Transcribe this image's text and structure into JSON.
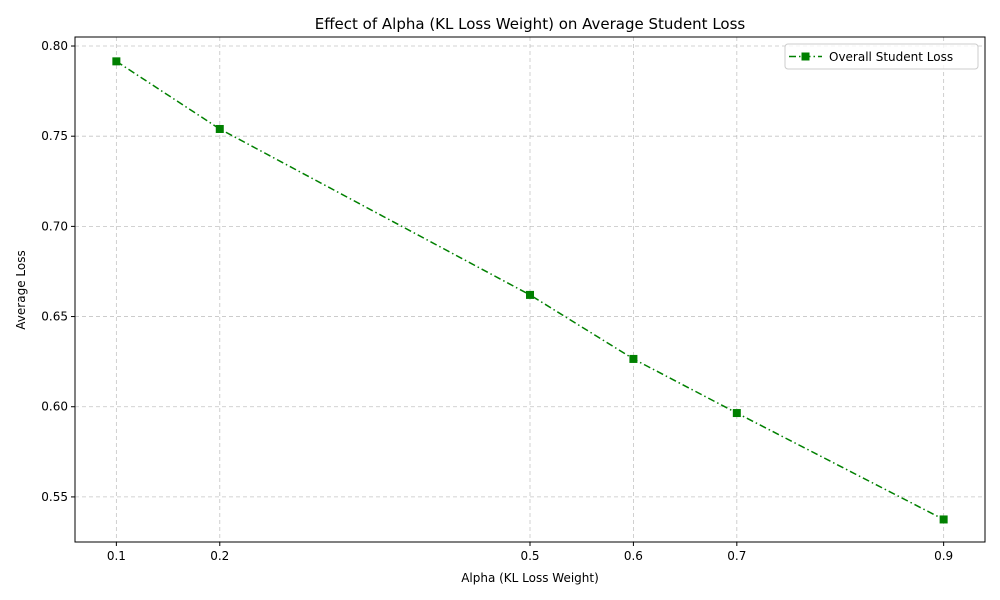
{
  "chart_data": {
    "type": "line",
    "title": "Effect of Alpha (KL Loss Weight) on Average Student Loss",
    "xlabel": "Alpha (KL Loss Weight)",
    "ylabel": "Average Loss",
    "x": [
      0.1,
      0.2,
      0.5,
      0.6,
      0.7,
      0.9
    ],
    "xticks": [
      "0.1",
      "0.2",
      "0.5",
      "0.6",
      "0.7",
      "0.9"
    ],
    "yticks": [
      "0.55",
      "0.60",
      "0.65",
      "0.70",
      "0.75",
      "0.80"
    ],
    "xlim": [
      0.06,
      0.94
    ],
    "ylim": [
      0.525,
      0.805
    ],
    "grid": true,
    "legend_position": "top-right",
    "series": [
      {
        "name": "Overall Student Loss",
        "values": [
          0.7915,
          0.754,
          0.662,
          0.6265,
          0.5965,
          0.5375
        ],
        "color": "#008000",
        "line_style": "dash-dot",
        "marker": "square"
      }
    ]
  }
}
